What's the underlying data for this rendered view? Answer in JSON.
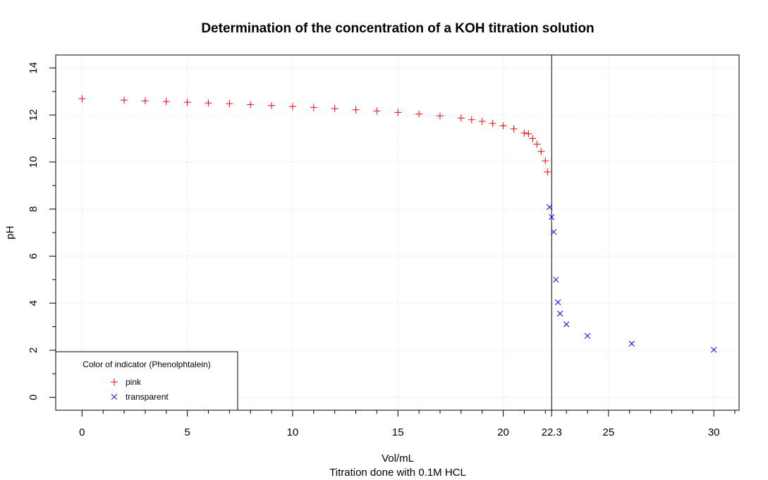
{
  "chart_data": {
    "type": "scatter",
    "title": "Determination of the concentration of a KOH titration solution",
    "xlabel": "Vol/mL",
    "xsublabel": "Titration done with 0.1M HCL",
    "ylabel": "pH",
    "xlim": [
      -1.25,
      31.2
    ],
    "ylim": [
      -0.55,
      14.55
    ],
    "x_ticks": [
      0,
      5,
      10,
      15,
      20,
      22.3,
      25,
      30
    ],
    "x_minor_ticks": [
      1,
      2,
      3,
      4,
      6,
      7,
      8,
      9,
      11,
      12,
      13,
      14,
      16,
      17,
      18,
      19,
      21,
      22,
      23,
      24,
      26,
      27,
      28,
      29,
      31
    ],
    "y_ticks": [
      0,
      2,
      4,
      6,
      8,
      10,
      12,
      14
    ],
    "y_minor_ticks": [
      1,
      3,
      5,
      7,
      9,
      11,
      13
    ],
    "grid": true,
    "vline": 22.3,
    "legend": {
      "title": "Color of indicator (Phenolphtalein)",
      "placement": "bottom-left",
      "entries": [
        {
          "label": "pink",
          "marker": "+",
          "color": "#ff0000"
        },
        {
          "label": "transparent",
          "marker": "x",
          "color": "#0000ff"
        }
      ]
    },
    "series": [
      {
        "name": "pink",
        "marker": "+",
        "color": "#ff0000",
        "points": [
          [
            0,
            12.69
          ],
          [
            2,
            12.63
          ],
          [
            3,
            12.6
          ],
          [
            4,
            12.57
          ],
          [
            5,
            12.54
          ],
          [
            6,
            12.51
          ],
          [
            7,
            12.48
          ],
          [
            8,
            12.44
          ],
          [
            9,
            12.4
          ],
          [
            10,
            12.36
          ],
          [
            11,
            12.32
          ],
          [
            12,
            12.27
          ],
          [
            13,
            12.22
          ],
          [
            14,
            12.17
          ],
          [
            15,
            12.11
          ],
          [
            16,
            12.04
          ],
          [
            17,
            11.96
          ],
          [
            18,
            11.87
          ],
          [
            18.5,
            11.8
          ],
          [
            19,
            11.73
          ],
          [
            19.5,
            11.64
          ],
          [
            20,
            11.54
          ],
          [
            20.5,
            11.41
          ],
          [
            21,
            11.23
          ],
          [
            21.2,
            11.2
          ],
          [
            21.4,
            11.0
          ],
          [
            21.6,
            10.76
          ],
          [
            21.8,
            10.45
          ],
          [
            22.0,
            10.05
          ],
          [
            22.1,
            9.58
          ]
        ]
      },
      {
        "name": "transparent",
        "marker": "x",
        "color": "#0000ff",
        "points": [
          [
            22.2,
            8.08
          ],
          [
            22.3,
            7.66
          ],
          [
            22.4,
            7.03
          ],
          [
            22.5,
            5.0
          ],
          [
            22.6,
            4.04
          ],
          [
            22.7,
            3.56
          ],
          [
            23.0,
            3.1
          ],
          [
            24.0,
            2.61
          ],
          [
            26.1,
            2.28
          ],
          [
            30.0,
            2.02
          ]
        ]
      }
    ]
  }
}
